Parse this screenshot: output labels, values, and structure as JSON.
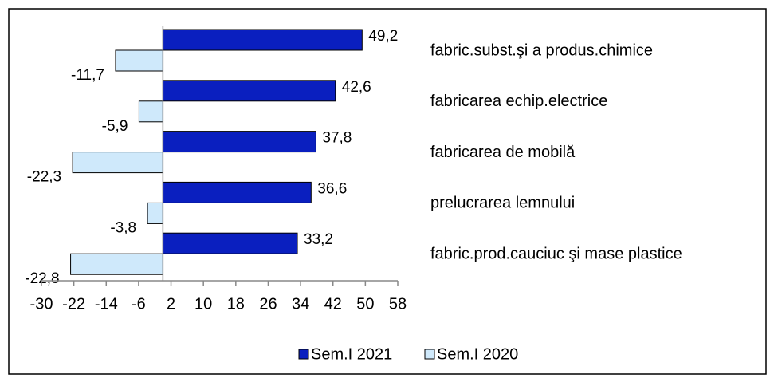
{
  "chart_data": {
    "type": "hbar",
    "categories": [
      "fabric.subst.şi a produs.chimice",
      "fabricarea echip.electrice",
      "fabricarea de mobilă",
      "prelucrarea lemnului",
      "fabric.prod.cauciuc şi mase plastice"
    ],
    "series": [
      {
        "name": "Sem.I 2021",
        "color": "#0a1fbf",
        "values": [
          49.2,
          42.6,
          37.8,
          36.6,
          33.2
        ],
        "value_labels": [
          "49,2",
          "42,6",
          "37,8",
          "36,6",
          "33,2"
        ]
      },
      {
        "name": "Sem.I 2020",
        "color": "#cfe9fb",
        "values": [
          -11.7,
          -5.9,
          -22.3,
          -3.8,
          -22.8
        ],
        "value_labels": [
          "-11,7",
          "-5,9",
          "-22,3",
          "-3,8",
          "-22,8"
        ]
      }
    ],
    "xlim": [
      -30,
      58
    ],
    "xticks": [
      -30,
      -22,
      -14,
      -6,
      2,
      10,
      18,
      26,
      34,
      42,
      50,
      58
    ],
    "legend": "bottom"
  }
}
